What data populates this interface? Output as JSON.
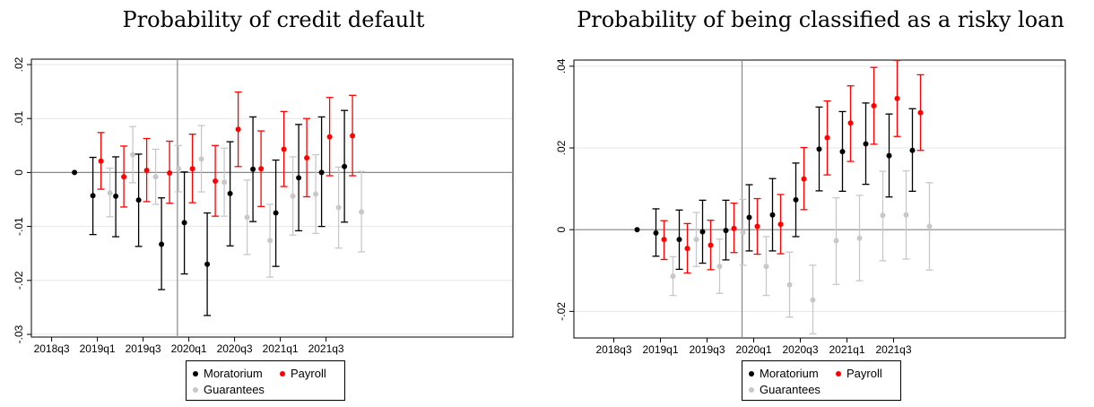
{
  "chart_data": [
    {
      "type": "scatter",
      "title": "Probability of credit default",
      "xlabel": "",
      "ylabel": "",
      "x_tick_labels": [
        "2018q3",
        "2019q1",
        "2019q3",
        "2020q1",
        "2020q3",
        "2021q1",
        "2021q3"
      ],
      "y_tick_labels": [
        "-.03",
        "-.02",
        "-.01",
        "0",
        ".01",
        ".02"
      ],
      "y_ticks": [
        -0.03,
        -0.02,
        -0.01,
        0,
        0.01,
        0.02
      ],
      "ylim": [
        -0.0305,
        0.021
      ],
      "quarters": [
        "2018q3",
        "2018q4",
        "2019q1",
        "2019q2",
        "2019q3",
        "2019q4",
        "2020q1",
        "2020q2",
        "2020q3",
        "2020q4",
        "2021q1",
        "2021q2",
        "2021q3",
        "2021q4"
      ],
      "reference_quarter": "2018q4",
      "vertical_line_between": [
        "2019q4",
        "2020q1"
      ],
      "grid": true,
      "series": [
        {
          "name": "Moratorium",
          "color": "#000000",
          "points": [
            {
              "x": "2018q4",
              "y": 0,
              "lo": 0,
              "hi": 0
            },
            {
              "x": "2019q1",
              "y": -0.0043,
              "lo": -0.0115,
              "hi": 0.0028
            },
            {
              "x": "2019q2",
              "y": -0.0044,
              "lo": -0.0119,
              "hi": 0.0029
            },
            {
              "x": "2019q3",
              "y": -0.0051,
              "lo": -0.0137,
              "hi": 0.0034
            },
            {
              "x": "2019q4",
              "y": -0.0133,
              "lo": -0.0217,
              "hi": -0.0047
            },
            {
              "x": "2020q1",
              "y": -0.0093,
              "lo": -0.0188,
              "hi": 0.0001
            },
            {
              "x": "2020q2",
              "y": -0.017,
              "lo": -0.0265,
              "hi": -0.0075
            },
            {
              "x": "2020q3",
              "y": -0.0039,
              "lo": -0.0136,
              "hi": 0.0057
            },
            {
              "x": "2020q4",
              "y": 0.0006,
              "lo": -0.0091,
              "hi": 0.0103
            },
            {
              "x": "2021q1",
              "y": -0.0075,
              "lo": -0.0174,
              "hi": 0.0023
            },
            {
              "x": "2021q2",
              "y": -0.001,
              "lo": -0.0108,
              "hi": 0.0089
            },
            {
              "x": "2021q3",
              "y": 0.0,
              "lo": -0.01,
              "hi": 0.0103
            },
            {
              "x": "2021q4",
              "y": 0.0011,
              "lo": -0.0092,
              "hi": 0.0115
            }
          ]
        },
        {
          "name": "Payroll",
          "color": "#ff0000",
          "points": [
            {
              "x": "2019q1",
              "y": 0.0021,
              "lo": -0.0031,
              "hi": 0.0074
            },
            {
              "x": "2019q2",
              "y": -0.0008,
              "lo": -0.0064,
              "hi": 0.0049
            },
            {
              "x": "2019q3",
              "y": 0.0004,
              "lo": -0.0054,
              "hi": 0.0063
            },
            {
              "x": "2019q4",
              "y": -0.0001,
              "lo": -0.0057,
              "hi": 0.0058
            },
            {
              "x": "2020q1",
              "y": 0.0007,
              "lo": -0.0056,
              "hi": 0.0071
            },
            {
              "x": "2020q2",
              "y": -0.0016,
              "lo": -0.0081,
              "hi": 0.005
            },
            {
              "x": "2020q3",
              "y": 0.008,
              "lo": 0.0011,
              "hi": 0.0149
            },
            {
              "x": "2020q4",
              "y": 0.0007,
              "lo": -0.0063,
              "hi": 0.0077
            },
            {
              "x": "2021q1",
              "y": 0.0043,
              "lo": -0.0026,
              "hi": 0.0113
            },
            {
              "x": "2021q2",
              "y": 0.0027,
              "lo": -0.0045,
              "hi": 0.01
            },
            {
              "x": "2021q3",
              "y": 0.0066,
              "lo": -0.0006,
              "hi": 0.0139
            },
            {
              "x": "2021q4",
              "y": 0.0068,
              "lo": -0.0006,
              "hi": 0.0143
            }
          ]
        },
        {
          "name": "Guarantees",
          "color": "#c8c8c8",
          "points": [
            {
              "x": "2019q1",
              "y": -0.0038,
              "lo": -0.0082,
              "hi": 0.0008
            },
            {
              "x": "2019q2",
              "y": 0.0033,
              "lo": -0.0019,
              "hi": 0.0085
            },
            {
              "x": "2019q3",
              "y": -0.0008,
              "lo": -0.0059,
              "hi": 0.0043
            },
            {
              "x": "2019q4",
              "y": 0.0007,
              "lo": -0.0036,
              "hi": 0.005
            },
            {
              "x": "2020q1",
              "y": 0.0025,
              "lo": -0.0036,
              "hi": 0.0087
            },
            {
              "x": "2020q2",
              "y": -0.0018,
              "lo": -0.0081,
              "hi": 0.0045
            },
            {
              "x": "2020q3",
              "y": -0.0083,
              "lo": -0.0152,
              "hi": -0.0014
            },
            {
              "x": "2020q4",
              "y": -0.0126,
              "lo": -0.0194,
              "hi": -0.0059
            },
            {
              "x": "2021q1",
              "y": -0.0044,
              "lo": -0.0116,
              "hi": 0.0029
            },
            {
              "x": "2021q2",
              "y": -0.004,
              "lo": -0.0113,
              "hi": 0.0033
            },
            {
              "x": "2021q3",
              "y": -0.0065,
              "lo": -0.014,
              "hi": 0.001
            },
            {
              "x": "2021q4",
              "y": -0.0073,
              "lo": -0.0147,
              "hi": 0.0002
            }
          ]
        }
      ],
      "legend": {
        "position": "bottom",
        "items": [
          {
            "label": "Moratorium",
            "color": "#000000"
          },
          {
            "label": "Payroll",
            "color": "#ff0000"
          },
          {
            "label": "Guarantees",
            "color": "#c8c8c8"
          }
        ]
      }
    },
    {
      "type": "scatter",
      "title": "Probability of being classified as a risky loan",
      "xlabel": "",
      "ylabel": "",
      "x_tick_labels": [
        "2018q3",
        "2019q1",
        "2019q3",
        "2020q1",
        "2020q3",
        "2021q1",
        "2021q3"
      ],
      "y_tick_labels": [
        "-.02",
        "0",
        ".02",
        ".04"
      ],
      "y_ticks": [
        -0.02,
        0,
        0.02,
        0.04
      ],
      "ylim": [
        -0.0265,
        0.0415
      ],
      "quarters": [
        "2018q3",
        "2018q4",
        "2019q1",
        "2019q2",
        "2019q3",
        "2019q4",
        "2020q1",
        "2020q2",
        "2020q3",
        "2020q4",
        "2021q1",
        "2021q2",
        "2021q3",
        "2021q4"
      ],
      "reference_quarter": "2018q4",
      "vertical_line_between": [
        "2019q4",
        "2020q1"
      ],
      "grid": true,
      "series": [
        {
          "name": "Moratorium",
          "color": "#000000",
          "points": [
            {
              "x": "2018q4",
              "y": 0,
              "lo": 0,
              "hi": 0
            },
            {
              "x": "2019q1",
              "y": -0.0008,
              "lo": -0.0065,
              "hi": 0.0051
            },
            {
              "x": "2019q2",
              "y": -0.0024,
              "lo": -0.0097,
              "hi": 0.0048
            },
            {
              "x": "2019q3",
              "y": -0.0005,
              "lo": -0.0082,
              "hi": 0.0072
            },
            {
              "x": "2019q4",
              "y": -0.0002,
              "lo": -0.0074,
              "hi": 0.0072
            },
            {
              "x": "2020q1",
              "y": 0.003,
              "lo": -0.0052,
              "hi": 0.011
            },
            {
              "x": "2020q2",
              "y": 0.0036,
              "lo": -0.0052,
              "hi": 0.0125
            },
            {
              "x": "2020q3",
              "y": 0.0073,
              "lo": -0.0017,
              "hi": 0.0163
            },
            {
              "x": "2020q4",
              "y": 0.0197,
              "lo": 0.0095,
              "hi": 0.03
            },
            {
              "x": "2021q1",
              "y": 0.0191,
              "lo": 0.0094,
              "hi": 0.0289
            },
            {
              "x": "2021q2",
              "y": 0.021,
              "lo": 0.0111,
              "hi": 0.031
            },
            {
              "x": "2021q3",
              "y": 0.0181,
              "lo": 0.008,
              "hi": 0.0283
            },
            {
              "x": "2021q4",
              "y": 0.0194,
              "lo": 0.0094,
              "hi": 0.0296
            }
          ]
        },
        {
          "name": "Payroll",
          "color": "#ff0000",
          "points": [
            {
              "x": "2019q1",
              "y": -0.0024,
              "lo": -0.0073,
              "hi": 0.0022
            },
            {
              "x": "2019q2",
              "y": -0.0046,
              "lo": -0.0106,
              "hi": 0.0015
            },
            {
              "x": "2019q3",
              "y": -0.0038,
              "lo": -0.0098,
              "hi": 0.0023
            },
            {
              "x": "2019q4",
              "y": 0.0003,
              "lo": -0.0056,
              "hi": 0.0065
            },
            {
              "x": "2020q1",
              "y": 0.0008,
              "lo": -0.006,
              "hi": 0.0076
            },
            {
              "x": "2020q2",
              "y": 0.0013,
              "lo": -0.0059,
              "hi": 0.0086
            },
            {
              "x": "2020q3",
              "y": 0.0124,
              "lo": 0.0049,
              "hi": 0.0201
            },
            {
              "x": "2020q4",
              "y": 0.0225,
              "lo": 0.0134,
              "hi": 0.0315
            },
            {
              "x": "2021q1",
              "y": 0.0261,
              "lo": 0.0167,
              "hi": 0.0352
            },
            {
              "x": "2021q2",
              "y": 0.0303,
              "lo": 0.0209,
              "hi": 0.0397
            },
            {
              "x": "2021q3",
              "y": 0.0321,
              "lo": 0.0228,
              "hi": 0.0414
            },
            {
              "x": "2021q4",
              "y": 0.0286,
              "lo": 0.0194,
              "hi": 0.0379
            }
          ]
        },
        {
          "name": "Guarantees",
          "color": "#c8c8c8",
          "points": [
            {
              "x": "2019q1",
              "y": -0.0114,
              "lo": -0.0161,
              "hi": -0.0066
            },
            {
              "x": "2019q2",
              "y": -0.0024,
              "lo": -0.009,
              "hi": 0.0042
            },
            {
              "x": "2019q3",
              "y": -0.009,
              "lo": -0.0156,
              "hi": -0.0023
            },
            {
              "x": "2019q4",
              "y": -0.0007,
              "lo": -0.0087,
              "hi": 0.0074
            },
            {
              "x": "2020q1",
              "y": -0.009,
              "lo": -0.0161,
              "hi": -0.0017
            },
            {
              "x": "2020q2",
              "y": -0.0135,
              "lo": -0.0214,
              "hi": -0.0055
            },
            {
              "x": "2020q3",
              "y": -0.0172,
              "lo": -0.0255,
              "hi": -0.0087
            },
            {
              "x": "2020q4",
              "y": -0.0027,
              "lo": -0.0134,
              "hi": 0.0078
            },
            {
              "x": "2021q1",
              "y": -0.0021,
              "lo": -0.0125,
              "hi": 0.0084
            },
            {
              "x": "2021q2",
              "y": 0.0035,
              "lo": -0.0076,
              "hi": 0.0143
            },
            {
              "x": "2021q3",
              "y": 0.0036,
              "lo": -0.0072,
              "hi": 0.0144
            },
            {
              "x": "2021q4",
              "y": 0.0008,
              "lo": -0.0099,
              "hi": 0.0115
            }
          ]
        }
      ],
      "legend": {
        "position": "bottom",
        "items": [
          {
            "label": "Moratorium",
            "color": "#000000"
          },
          {
            "label": "Payroll",
            "color": "#ff0000"
          },
          {
            "label": "Guarantees",
            "color": "#c8c8c8"
          }
        ]
      }
    }
  ]
}
